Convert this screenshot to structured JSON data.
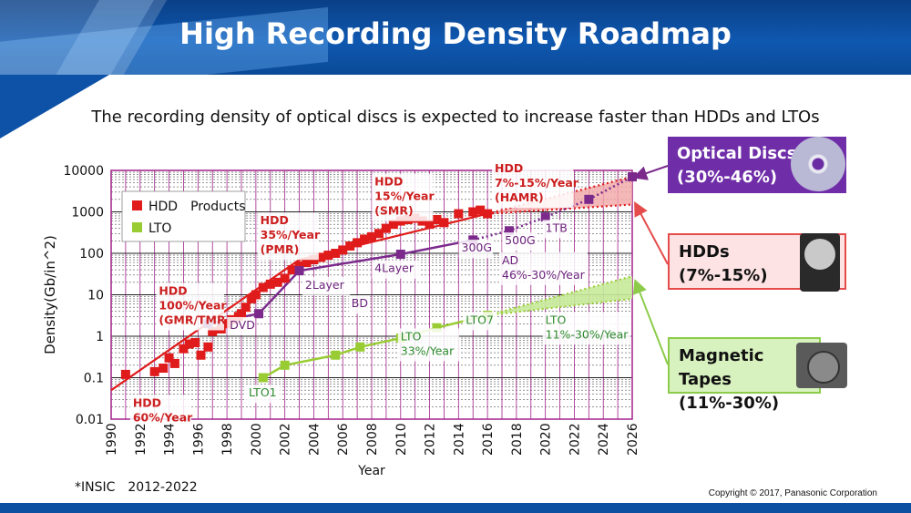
{
  "header": {
    "title": "High Recording Density Roadmap",
    "subtitle": "The recording density of optical discs is expected to increase faster than HDDs and LTOs"
  },
  "footer": {
    "source_note": "*INSIC　2012-2022",
    "copyright": "Copyright © 2017, Panasonic Corporation"
  },
  "callouts": {
    "optical": {
      "line1": "Optical Discs",
      "line2": "(30%-46%)",
      "icon": "disc-icon"
    },
    "hdd": {
      "line1": "HDDs",
      "line2": "(7%-15%)",
      "icon": "hard-drive-icon"
    },
    "tape": {
      "line1": "Magnetic Tapes",
      "line2": "(11%-30%)",
      "icon": "tape-cartridge-icon"
    }
  },
  "colors": {
    "hdd": "#e01b1b",
    "lto": "#99cc33",
    "optical": "#7b2a8c",
    "hdd_text": "#cc1f1f",
    "lto_text": "#2e8b2e",
    "optical_text": "#6a1f7a",
    "grid_frame": "#a0208a"
  },
  "chart_data": {
    "type": "scatter",
    "xlabel": "Year",
    "ylabel": "Density(Gb/in^2)",
    "xlim": [
      1990,
      2026
    ],
    "ylim": [
      0.01,
      10000
    ],
    "y_scale": "log",
    "x_ticks": [
      "1990",
      "1992",
      "1994",
      "1996",
      "1998",
      "2000",
      "2002",
      "2004",
      "2006",
      "2008",
      "2010",
      "2012",
      "2014",
      "2016",
      "2018",
      "2020",
      "2022",
      "2024",
      "2026"
    ],
    "y_ticks": [
      "0.01",
      "0.1",
      "1",
      "10",
      "100",
      "1000",
      "10000"
    ],
    "legend": {
      "position": "top-left",
      "entries": [
        "HDD　Products",
        "LTO"
      ]
    },
    "hdd_products": {
      "name": "HDD　Products",
      "points": [
        [
          1991,
          0.12
        ],
        [
          1993,
          0.14
        ],
        [
          1993.6,
          0.17
        ],
        [
          1994,
          0.3
        ],
        [
          1994.4,
          0.22
        ],
        [
          1995,
          0.5
        ],
        [
          1995.4,
          0.65
        ],
        [
          1995.8,
          0.7
        ],
        [
          1996.2,
          0.35
        ],
        [
          1996.7,
          0.55
        ],
        [
          1997,
          1.3
        ],
        [
          1997.6,
          1.5
        ],
        [
          1998,
          2
        ],
        [
          1998.4,
          2.5
        ],
        [
          1998.8,
          3
        ],
        [
          1999,
          3.5
        ],
        [
          1999.3,
          5
        ],
        [
          1999.7,
          8
        ],
        [
          2000,
          10
        ],
        [
          2000.5,
          15
        ],
        [
          2001,
          18
        ],
        [
          2001.5,
          20
        ],
        [
          2002,
          25
        ],
        [
          2002.5,
          40
        ],
        [
          2003,
          50
        ],
        [
          2003.5,
          60
        ],
        [
          2004,
          70
        ],
        [
          2004.5,
          80
        ],
        [
          2005,
          90
        ],
        [
          2005.5,
          100
        ],
        [
          2006,
          120
        ],
        [
          2006.5,
          150
        ],
        [
          2007,
          180
        ],
        [
          2007.5,
          220
        ],
        [
          2008,
          250
        ],
        [
          2008.5,
          300
        ],
        [
          2009,
          400
        ],
        [
          2009.5,
          500
        ],
        [
          2010,
          600
        ],
        [
          2010.5,
          650
        ],
        [
          2011,
          700
        ],
        [
          2011.5,
          600
        ],
        [
          2012,
          500
        ],
        [
          2012.5,
          650
        ],
        [
          2013,
          550
        ],
        [
          2014,
          900
        ],
        [
          2015,
          1000
        ],
        [
          2015.5,
          1100
        ],
        [
          2016,
          900
        ]
      ]
    },
    "hdd_trend": {
      "points": [
        [
          1990,
          0.05
        ],
        [
          2003,
          70
        ]
      ]
    },
    "hdd_trend2": {
      "points": [
        [
          2003,
          70
        ],
        [
          2016,
          900
        ]
      ]
    },
    "hdd_projection": {
      "from": [
        2016,
        900
      ],
      "upper": [
        2026,
        7000
      ],
      "lower": [
        2026,
        1500
      ]
    },
    "lto": {
      "name": "LTO",
      "points": [
        [
          2000.5,
          0.1
        ],
        [
          2002,
          0.2
        ],
        [
          2005.5,
          0.35
        ],
        [
          2007.2,
          0.55
        ],
        [
          2010,
          0.9
        ],
        [
          2012.5,
          1.6
        ],
        [
          2016,
          3.2
        ]
      ],
      "projection": {
        "from": [
          2016,
          3.2
        ],
        "upper": [
          2026,
          28
        ],
        "lower": [
          2026,
          8
        ]
      }
    },
    "optical": {
      "name": "Optical Discs",
      "points": [
        [
          1996.7,
          2
        ],
        [
          2000.2,
          3.5
        ],
        [
          2003,
          38
        ],
        [
          2010,
          95
        ],
        [
          2015,
          210
        ],
        [
          2017.5,
          350
        ],
        [
          2020,
          750
        ],
        [
          2023,
          2000
        ],
        [
          2026,
          7000
        ]
      ]
    },
    "annotations": [
      {
        "text": [
          "HDD",
          "60%/Year"
        ],
        "x": 1991.5,
        "y": 0.02,
        "color": "hdd_text"
      },
      {
        "text": [
          "HDD",
          "100%/Year",
          "(GMR/TMR)"
        ],
        "x": 1993.3,
        "y": 10,
        "color": "hdd_text"
      },
      {
        "text": [
          "HDD",
          "35%/Year",
          "(PMR)"
        ],
        "x": 2000.3,
        "y": 500,
        "color": "hdd_text"
      },
      {
        "text": [
          "HDD",
          "15%/Year",
          "(SMR)"
        ],
        "x": 2008.2,
        "y": 4300,
        "color": "hdd_text"
      },
      {
        "text": [
          "HDD",
          "7%-15%/Year",
          "(HAMR)"
        ],
        "x": 2016.5,
        "y": 9000,
        "color": "hdd_text"
      },
      {
        "text": [
          "DVD"
        ],
        "x": 1998.2,
        "y": 1.5,
        "color": "optical_text"
      },
      {
        "text": [
          "2Layer"
        ],
        "x": 2003.4,
        "y": 14,
        "color": "optical_text"
      },
      {
        "text": [
          "BD"
        ],
        "x": 2006.6,
        "y": 5,
        "color": "optical_text"
      },
      {
        "text": [
          "4Layer"
        ],
        "x": 2008.2,
        "y": 35,
        "color": "optical_text"
      },
      {
        "text": [
          "300G"
        ],
        "x": 2014.2,
        "y": 110,
        "color": "optical_text"
      },
      {
        "text": [
          "500G"
        ],
        "x": 2017.2,
        "y": 165,
        "color": "optical_text"
      },
      {
        "text": [
          "1TB"
        ],
        "x": 2020,
        "y": 330,
        "color": "optical_text"
      },
      {
        "text": [
          "AD",
          "46%-30%/Year"
        ],
        "x": 2017,
        "y": 55,
        "color": "optical_text"
      },
      {
        "text": [
          "LTO1"
        ],
        "x": 1999.5,
        "y": 0.035,
        "color": "lto_text"
      },
      {
        "text": [
          "LTO",
          "33%/Year"
        ],
        "x": 2010,
        "y": 0.8,
        "color": "lto_text"
      },
      {
        "text": [
          "LTO7"
        ],
        "x": 2014.5,
        "y": 2,
        "color": "lto_text"
      },
      {
        "text": [
          "LTO",
          "11%-30%/Year"
        ],
        "x": 2020,
        "y": 2,
        "color": "lto_text"
      }
    ]
  }
}
